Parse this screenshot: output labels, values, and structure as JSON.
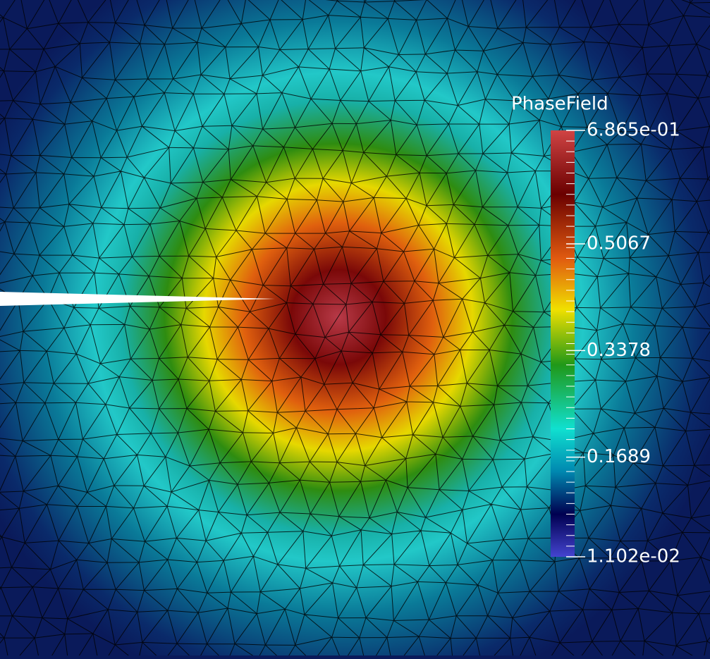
{
  "colorbar": {
    "title": "PhaseField",
    "range": [
      0.01102,
      0.6865
    ],
    "ticks": [
      {
        "value": 0.6865,
        "label": "6.865e-01"
      },
      0.5067,
      0.3378,
      0.1689,
      {
        "value": 0.01102,
        "label": "1.102e-02"
      }
    ]
  }
}
